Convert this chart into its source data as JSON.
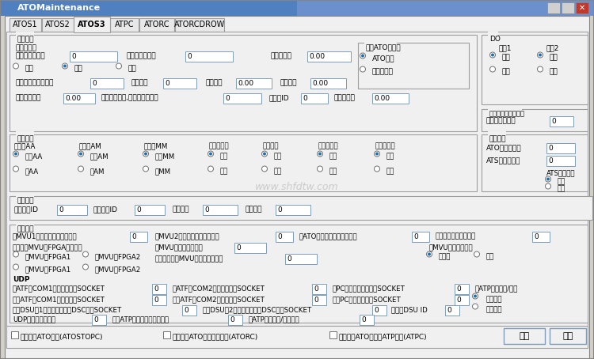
{
  "title": "ATOMaintenance",
  "tabs": [
    "ATOS1",
    "ATOS2",
    "ATOS3",
    "ATPC",
    "ATORC",
    "ATORCDROW"
  ],
  "active_tab": "ATOS3",
  "bg_outer": "#D4D0C8",
  "bg_panel": "#F0F0F0",
  "bg_tab_active": "#F0F0F0",
  "bg_tab_inactive": "#E0E0E0",
  "input_bg": "#FFFFFF",
  "input_border": "#7F9DB9",
  "group_border": "#9E9E9E",
  "group_bg": "#F0F0F0",
  "title_bar_left": "#0A246A",
  "title_bar_right": "#A6CAF0",
  "watermark": "www.shfdtw.com",
  "radio_fill": "#1C6FB5",
  "text_color": "#000000"
}
